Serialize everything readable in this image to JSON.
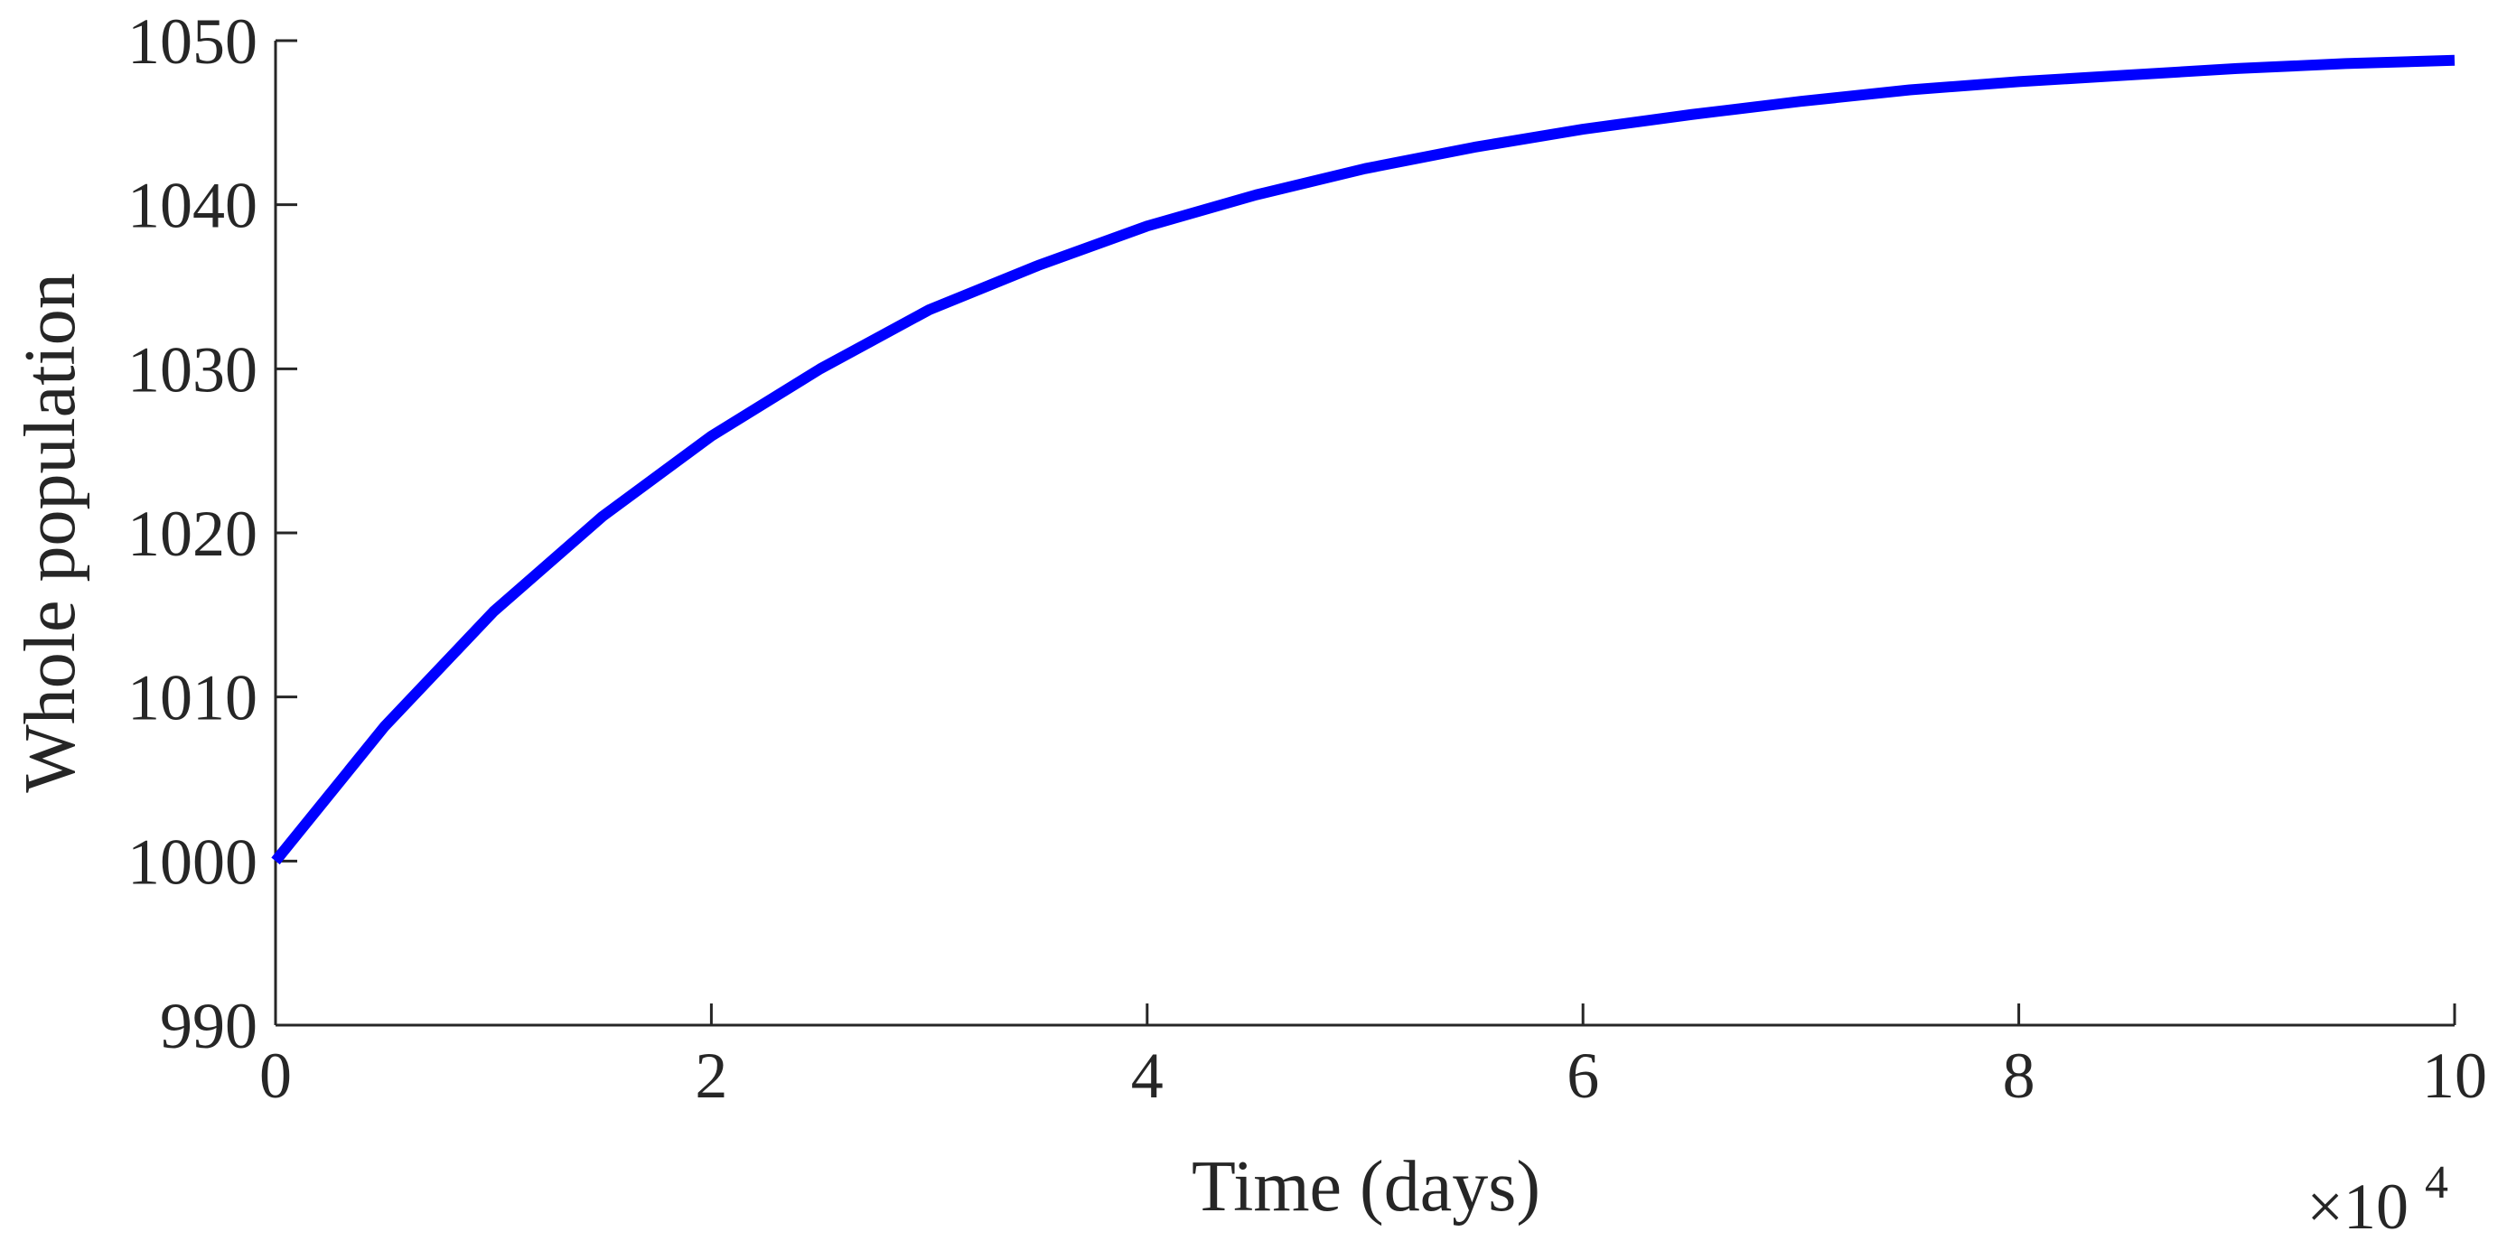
{
  "chart_data": {
    "type": "line",
    "title": "",
    "xlabel": "Time (days)",
    "ylabel": "Whole population",
    "x_multiplier_label": {
      "base": "×10",
      "exponent": "4"
    },
    "xlim": [
      0,
      10
    ],
    "ylim": [
      990,
      1050
    ],
    "x_ticks": [
      0,
      2,
      4,
      6,
      8,
      10
    ],
    "y_ticks": [
      990,
      1000,
      1010,
      1020,
      1030,
      1040,
      1050
    ],
    "x_tick_labels": [
      "0",
      "2",
      "4",
      "6",
      "8",
      "10"
    ],
    "y_tick_labels": [
      "990",
      "1000",
      "1010",
      "1020",
      "1030",
      "1040",
      "1050"
    ],
    "grid": false,
    "box": false,
    "series": [
      {
        "color": "#0000ff",
        "x": [
          0,
          0.5,
          1,
          1.5,
          2,
          2.5,
          3,
          3.5,
          4,
          4.5,
          5,
          5.5,
          6,
          6.5,
          7,
          7.5,
          8,
          8.5,
          9,
          9.5,
          10
        ],
        "y": [
          1000,
          1008.2,
          1015.2,
          1021.0,
          1025.9,
          1030.0,
          1033.6,
          1036.3,
          1038.7,
          1040.6,
          1042.2,
          1043.5,
          1044.6,
          1045.5,
          1046.3,
          1047.0,
          1047.5,
          1047.9,
          1048.3,
          1048.6,
          1048.8
        ]
      }
    ]
  }
}
